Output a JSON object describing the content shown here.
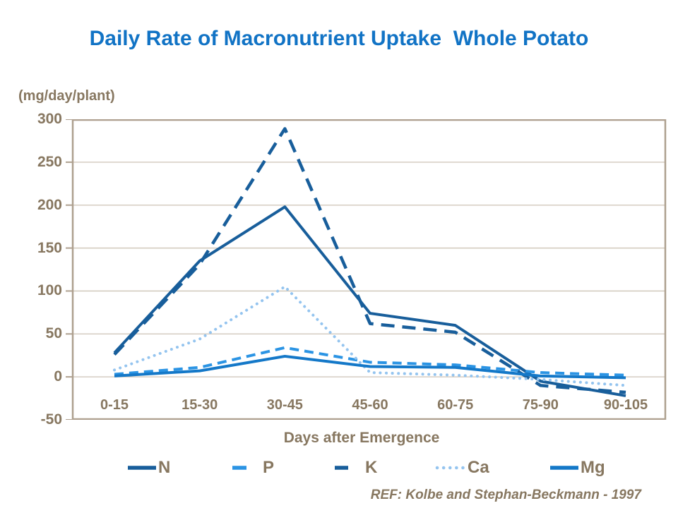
{
  "title": "Daily Rate of Macronutrient Uptake  Whole Potato",
  "y_axis": {
    "unit_label": "(mg/day/plant)",
    "ticks": [
      300,
      250,
      200,
      150,
      100,
      50,
      0,
      -50
    ]
  },
  "x_axis": {
    "title": "Days after Emergence"
  },
  "footer": {
    "ref": "REF: Kolbe and Stephan-Beckmann - 1997"
  },
  "colors": {
    "title_blue": "#1173C5",
    "text_brown": "#877760",
    "axis_frame": "#AEA08F",
    "gridline": "#CDC3B5",
    "dark_blue": "#185E9B",
    "medium_blue": "#1478C8",
    "bright_blue": "#2B94E4",
    "light_blue": "#94C4EF"
  },
  "chart_data": {
    "type": "line",
    "title": "Daily Rate of Macronutrient Uptake  Whole Potato",
    "xlabel": "Days after Emergence",
    "ylabel": "(mg/day/plant)",
    "ylim": [
      -50,
      300
    ],
    "y_tick_step": 50,
    "grid": true,
    "legend_position": "bottom",
    "categories": [
      "0-15",
      "15-30",
      "30-45",
      "45-60",
      "60-75",
      "75-90",
      "90-105"
    ],
    "series": [
      {
        "name": "N",
        "color": "#185E9B",
        "style": "solid",
        "width": 4,
        "dash": "",
        "swatch_len": 40,
        "values": [
          28,
          135,
          198,
          74,
          60,
          -5,
          -22
        ]
      },
      {
        "name": "P",
        "color": "#2B94E4",
        "style": "dashed",
        "width": 4,
        "dash": "13 8",
        "swatch_len": 20,
        "values": [
          3,
          11,
          34,
          17,
          14,
          5,
          2
        ]
      },
      {
        "name": "K",
        "color": "#185E9B",
        "style": "dashed",
        "width": 4.5,
        "dash": "19 11",
        "swatch_len": 19,
        "values": [
          26,
          131,
          289,
          62,
          52,
          -10,
          -18
        ]
      },
      {
        "name": "Ca",
        "color": "#94C4EF",
        "style": "dotted",
        "width": 4,
        "dash": "0.1 8.5",
        "swatch_len": 38,
        "values": [
          8,
          44,
          105,
          5,
          2,
          -3,
          -10
        ]
      },
      {
        "name": "Mg",
        "color": "#1478C8",
        "style": "solid",
        "width": 4,
        "dash": "",
        "swatch_len": 40,
        "values": [
          1,
          7,
          24,
          12,
          11,
          1,
          -1
        ]
      }
    ]
  }
}
